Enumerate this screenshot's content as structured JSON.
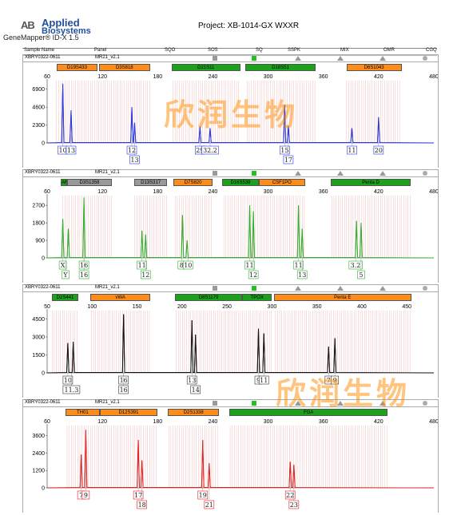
{
  "header": {
    "logo_mark": "AB",
    "logo_line1": "Applied",
    "logo_line2": "Biosystems",
    "software": "GeneMapper® ID-X  1.5",
    "project": "Project: XB-1014-GX WXXR"
  },
  "columns": [
    "Sample Name",
    "Panel",
    "SQO",
    "SOS",
    "SQ",
    "SSPK",
    "MIX",
    "OMR",
    "CGQ"
  ],
  "watermark": "欣润生物",
  "colors": {
    "blue": "#2a37d9",
    "green": "#2fae2f",
    "black": "#111111",
    "red": "#e02020",
    "orange": "#ff8c1a",
    "green_locus": "#1aa31a",
    "gray": "#999999"
  },
  "chart_data": [
    {
      "type": "line",
      "dye": "blue",
      "sample": "XBRY0322-0611",
      "panel": "MR21_v2.1",
      "x_ticks": [
        60,
        120,
        180,
        240,
        300,
        360,
        420,
        480
      ],
      "y_ticks": [
        6900,
        4600,
        2300,
        0
      ],
      "ylim": [
        0,
        8000
      ],
      "xlim": [
        60,
        480
      ],
      "loci": [
        {
          "name": "D19S433",
          "start": 70,
          "end": 115,
          "color": "orange"
        },
        {
          "name": "D3S818",
          "start": 116,
          "end": 172,
          "color": "orange"
        },
        {
          "name": "D21S11",
          "start": 195,
          "end": 270,
          "color": "green"
        },
        {
          "name": "D18S51",
          "start": 275,
          "end": 352,
          "color": "green"
        },
        {
          "name": "D6S1043",
          "start": 385,
          "end": 445,
          "color": "orange"
        }
      ],
      "peaks": [
        {
          "x": 77,
          "y": 7600,
          "allele": "10"
        },
        {
          "x": 86,
          "y": 4200,
          "allele": "13"
        },
        {
          "x": 152,
          "y": 4600,
          "allele": "12"
        },
        {
          "x": 155,
          "y": 2600,
          "allele": "13"
        },
        {
          "x": 226,
          "y": 2100,
          "allele": "29"
        },
        {
          "x": 237,
          "y": 1900,
          "allele": "32.2"
        },
        {
          "x": 318,
          "y": 4900,
          "allele": "15"
        },
        {
          "x": 322,
          "y": 2200,
          "allele": "17"
        },
        {
          "x": 391,
          "y": 1900,
          "allele": "11"
        },
        {
          "x": 420,
          "y": 3300,
          "allele": "20"
        }
      ],
      "labels": [
        {
          "x": 77,
          "row": 1,
          "text": "10"
        },
        {
          "x": 86,
          "row": 1,
          "text": "13"
        },
        {
          "x": 152,
          "row": 1,
          "text": "12"
        },
        {
          "x": 155,
          "row": 2,
          "text": "13"
        },
        {
          "x": 226,
          "row": 1,
          "text": "29"
        },
        {
          "x": 237,
          "row": 1,
          "text": "32.2"
        },
        {
          "x": 318,
          "row": 1,
          "text": "15"
        },
        {
          "x": 322,
          "row": 2,
          "text": "17"
        },
        {
          "x": 391,
          "row": 1,
          "text": "11"
        },
        {
          "x": 420,
          "row": 1,
          "text": "20"
        }
      ]
    },
    {
      "type": "line",
      "dye": "green",
      "sample": "XBRY0322-0611",
      "panel": "MR21_v2.1",
      "x_ticks": [
        60,
        120,
        180,
        240,
        300,
        360,
        420,
        480
      ],
      "y_ticks": [
        2700,
        1800,
        900,
        0
      ],
      "ylim": [
        0,
        3200
      ],
      "xlim": [
        60,
        480
      ],
      "loci": [
        {
          "name": "AMEL",
          "start": 75,
          "end": 82,
          "color": "green"
        },
        {
          "name": "D3S1358",
          "start": 82,
          "end": 130,
          "color": "gray"
        },
        {
          "name": "D13S317",
          "start": 155,
          "end": 190,
          "color": "gray"
        },
        {
          "name": "D7S820",
          "start": 197,
          "end": 240,
          "color": "orange"
        },
        {
          "name": "D16S539",
          "start": 250,
          "end": 290,
          "color": "green"
        },
        {
          "name": "CSF1PO",
          "start": 290,
          "end": 340,
          "color": "orange"
        },
        {
          "name": "Penta D",
          "start": 368,
          "end": 455,
          "color": "green"
        }
      ],
      "peaks": [
        {
          "x": 77,
          "y": 2000,
          "allele": "X"
        },
        {
          "x": 83,
          "y": 1500,
          "allele": "Y"
        },
        {
          "x": 100,
          "y": 3100,
          "allele": "16"
        },
        {
          "x": 163,
          "y": 1400,
          "allele": "11"
        },
        {
          "x": 167,
          "y": 1200,
          "allele": "12"
        },
        {
          "x": 207,
          "y": 2200,
          "allele": "8"
        },
        {
          "x": 212,
          "y": 900,
          "allele": "10"
        },
        {
          "x": 280,
          "y": 2700,
          "allele": "11"
        },
        {
          "x": 284,
          "y": 2400,
          "allele": "12"
        },
        {
          "x": 333,
          "y": 2700,
          "allele": "11"
        },
        {
          "x": 337,
          "y": 1500,
          "allele": "13"
        },
        {
          "x": 396,
          "y": 1900,
          "allele": "3.2"
        },
        {
          "x": 401,
          "y": 1800,
          "allele": "5"
        }
      ],
      "labels": [
        {
          "x": 77,
          "row": 1,
          "text": "X"
        },
        {
          "x": 80,
          "row": 2,
          "text": "Y"
        },
        {
          "x": 100,
          "row": 1,
          "text": "16"
        },
        {
          "x": 100,
          "row": 2,
          "text": "16"
        },
        {
          "x": 163,
          "row": 1,
          "text": "11"
        },
        {
          "x": 167,
          "row": 2,
          "text": "12"
        },
        {
          "x": 206,
          "row": 1,
          "text": "8"
        },
        {
          "x": 213,
          "row": 1,
          "text": "10"
        },
        {
          "x": 280,
          "row": 1,
          "text": "11"
        },
        {
          "x": 284,
          "row": 2,
          "text": "12"
        },
        {
          "x": 333,
          "row": 1,
          "text": "11"
        },
        {
          "x": 337,
          "row": 2,
          "text": "13"
        },
        {
          "x": 395,
          "row": 1,
          "text": "3.2"
        },
        {
          "x": 401,
          "row": 2,
          "text": "5"
        }
      ]
    },
    {
      "type": "line",
      "dye": "black",
      "sample": "XBRY0322-0611",
      "panel": "MR21_v2.1",
      "x_ticks": [
        50,
        100,
        150,
        200,
        250,
        300,
        350,
        400,
        450
      ],
      "y_ticks": [
        4500,
        3000,
        1500,
        0
      ],
      "ylim": [
        0,
        5200
      ],
      "xlim": [
        50,
        480
      ],
      "loci": [
        {
          "name": "D2S441",
          "start": 55,
          "end": 85,
          "color": "green"
        },
        {
          "name": "vWA",
          "start": 98,
          "end": 165,
          "color": "orange"
        },
        {
          "name": "D8S1179",
          "start": 192,
          "end": 267,
          "color": "green"
        },
        {
          "name": "TPOX",
          "start": 267,
          "end": 300,
          "color": "green"
        },
        {
          "name": "Penta E",
          "start": 302,
          "end": 455,
          "color": "orange"
        }
      ],
      "peaks": [
        {
          "x": 73,
          "y": 2500,
          "allele": "10"
        },
        {
          "x": 79,
          "y": 2600,
          "allele": "11.3"
        },
        {
          "x": 135,
          "y": 4900,
          "allele": "16"
        },
        {
          "x": 211,
          "y": 4400,
          "allele": "13"
        },
        {
          "x": 215,
          "y": 3200,
          "allele": "14"
        },
        {
          "x": 285,
          "y": 3700,
          "allele": "9"
        },
        {
          "x": 291,
          "y": 3300,
          "allele": "11"
        },
        {
          "x": 363,
          "y": 2200,
          "allele": "7"
        },
        {
          "x": 370,
          "y": 2900,
          "allele": "9"
        }
      ],
      "labels": [
        {
          "x": 73,
          "row": 1,
          "text": "10"
        },
        {
          "x": 77,
          "row": 2,
          "text": "11.3"
        },
        {
          "x": 135,
          "row": 1,
          "text": "16"
        },
        {
          "x": 135,
          "row": 2,
          "text": "16"
        },
        {
          "x": 211,
          "row": 1,
          "text": "13"
        },
        {
          "x": 215,
          "row": 2,
          "text": "14"
        },
        {
          "x": 285,
          "row": 1,
          "text": "9"
        },
        {
          "x": 291,
          "row": 1,
          "text": "11"
        },
        {
          "x": 363,
          "row": 1,
          "text": "7"
        },
        {
          "x": 370,
          "row": 1,
          "text": "9"
        }
      ]
    },
    {
      "type": "line",
      "dye": "red",
      "sample": "XBRY0322-0611",
      "panel": "MR21_v2.1",
      "x_ticks": [
        60,
        120,
        180,
        240,
        300,
        360,
        420,
        480
      ],
      "y_ticks": [
        3600,
        2400,
        1200,
        0
      ],
      "ylim": [
        0,
        4300
      ],
      "xlim": [
        60,
        480
      ],
      "loci": [
        {
          "name": "TH01",
          "start": 80,
          "end": 117,
          "color": "orange"
        },
        {
          "name": "D12S391",
          "start": 117,
          "end": 180,
          "color": "orange"
        },
        {
          "name": "D2S1338",
          "start": 191,
          "end": 247,
          "color": "orange"
        },
        {
          "name": "FGA",
          "start": 258,
          "end": 430,
          "color": "green"
        }
      ],
      "peaks": [
        {
          "x": 97,
          "y": 2300,
          "allele": "7"
        },
        {
          "x": 102,
          "y": 4000,
          "allele": "9"
        },
        {
          "x": 159,
          "y": 3300,
          "allele": "17"
        },
        {
          "x": 163,
          "y": 1900,
          "allele": "18"
        },
        {
          "x": 229,
          "y": 3300,
          "allele": "19"
        },
        {
          "x": 236,
          "y": 1700,
          "allele": "21"
        },
        {
          "x": 324,
          "y": 1800,
          "allele": "22"
        },
        {
          "x": 328,
          "y": 1600,
          "allele": "23"
        }
      ],
      "labels": [
        {
          "x": 97,
          "row": 1,
          "text": "7"
        },
        {
          "x": 102,
          "row": 1,
          "text": "9"
        },
        {
          "x": 159,
          "row": 1,
          "text": "17"
        },
        {
          "x": 163,
          "row": 2,
          "text": "18"
        },
        {
          "x": 229,
          "row": 1,
          "text": "19"
        },
        {
          "x": 236,
          "row": 2,
          "text": "21"
        },
        {
          "x": 324,
          "row": 1,
          "text": "22"
        },
        {
          "x": 328,
          "row": 2,
          "text": "23"
        }
      ]
    }
  ]
}
